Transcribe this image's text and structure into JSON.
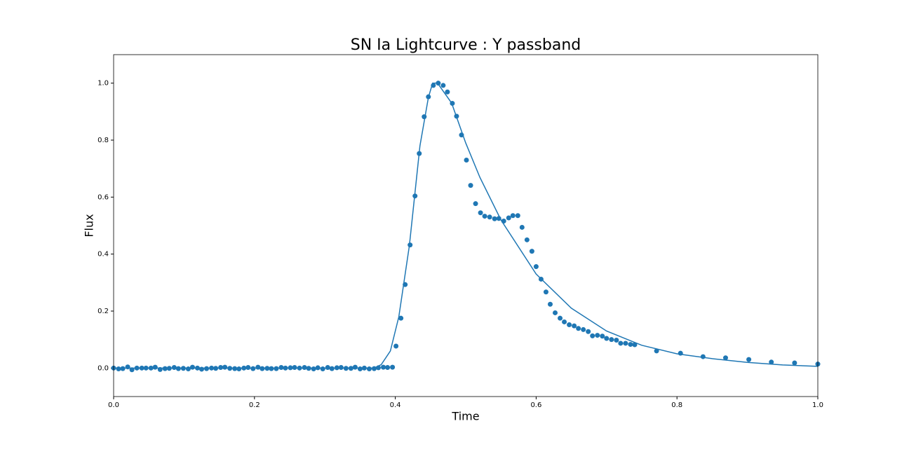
{
  "chart_data": {
    "type": "scatter",
    "title": "SN Ia Lightcurve : Y passband",
    "x_label": "Time",
    "y_label": "Flux",
    "xlim": [
      0,
      1
    ],
    "ylim": [
      -0.1,
      1.1
    ],
    "xticks": [
      {
        "value": 0,
        "label": "0.0"
      },
      0.2,
      0.4,
      0.6,
      0.8,
      {
        "value": 1,
        "label": "1.0"
      }
    ],
    "yticks": [
      {
        "value": 0,
        "label": "0.0"
      },
      0.2,
      0.4,
      0.6,
      0.8,
      {
        "value": 1,
        "label": "1.0"
      }
    ],
    "grid": false,
    "series": [
      {
        "type": "scatter",
        "color": "#1f77b4",
        "x": [
          0,
          0.007,
          0.013,
          0.02,
          0.026,
          0.033,
          0.04,
          0.046,
          0.053,
          0.059,
          0.066,
          0.073,
          0.079,
          0.086,
          0.092,
          0.099,
          0.106,
          0.112,
          0.119,
          0.125,
          0.132,
          0.139,
          0.145,
          0.152,
          0.158,
          0.165,
          0.172,
          0.178,
          0.185,
          0.191,
          0.198,
          0.205,
          0.211,
          0.218,
          0.224,
          0.231,
          0.238,
          0.244,
          0.251,
          0.257,
          0.264,
          0.271,
          0.277,
          0.284,
          0.29,
          0.297,
          0.304,
          0.31,
          0.317,
          0.323,
          0.33,
          0.337,
          0.343,
          0.35,
          0.356,
          0.363,
          0.37,
          0.376,
          0.383,
          0.389,
          0.396,
          0.401,
          0.408,
          0.414,
          0.421,
          0.428,
          0.434,
          0.441,
          0.447,
          0.454,
          0.461,
          0.468,
          0.474,
          0.481,
          0.487,
          0.494,
          0.501,
          0.507,
          0.514,
          0.521,
          0.527,
          0.534,
          0.541,
          0.547,
          0.554,
          0.561,
          0.567,
          0.574,
          0.58,
          0.587,
          0.594,
          0.6,
          0.607,
          0.614,
          0.62,
          0.627,
          0.634,
          0.64,
          0.647,
          0.654,
          0.66,
          0.667,
          0.674,
          0.68,
          0.687,
          0.694,
          0.7,
          0.707,
          0.714,
          0.72,
          0.727,
          0.734,
          0.74,
          0.771,
          0.805,
          0.837,
          0.869,
          0.902,
          0.934,
          0.967,
          1.0
        ],
        "values": [
          0,
          -0.003,
          -0.002,
          0.004,
          -0.006,
          0,
          0,
          0,
          0,
          0.003,
          -0.005,
          -0.002,
          -0.001,
          0.002,
          -0.002,
          -0.001,
          -0.003,
          0.003,
          0,
          -0.004,
          -0.002,
          0,
          -0.001,
          0.002,
          0.003,
          -0.001,
          -0.002,
          -0.003,
          0,
          0.002,
          -0.002,
          0.003,
          -0.002,
          -0.001,
          -0.002,
          -0.002,
          0.002,
          0,
          0.001,
          0.002,
          0,
          0.002,
          -0.001,
          -0.003,
          0.001,
          -0.003,
          0.002,
          -0.002,
          0.001,
          0.002,
          -0.001,
          -0.001,
          0.003,
          -0.003,
          0,
          -0.003,
          -0.002,
          0.001,
          0.003,
          0.002,
          0.003,
          0.077,
          0.175,
          0.293,
          0.432,
          0.604,
          0.753,
          0.882,
          0.952,
          0.992,
          1.0,
          0.992,
          0.969,
          0.929,
          0.884,
          0.818,
          0.73,
          0.641,
          0.577,
          0.545,
          0.533,
          0.53,
          0.524,
          0.525,
          0.516,
          0.527,
          0.535,
          0.535,
          0.494,
          0.45,
          0.41,
          0.356,
          0.312,
          0.267,
          0.224,
          0.194,
          0.175,
          0.162,
          0.152,
          0.148,
          0.139,
          0.135,
          0.128,
          0.113,
          0.115,
          0.112,
          0.104,
          0.1,
          0.098,
          0.087,
          0.087,
          0.083,
          0.082,
          0.06,
          0.052,
          0.04,
          0.036,
          0.03,
          0.021,
          0.018,
          0.014
        ]
      },
      {
        "type": "line",
        "color": "#1f77b4",
        "x": [
          0,
          0.37,
          0.38,
          0.393,
          0.405,
          0.42,
          0.435,
          0.447,
          0.453,
          0.46,
          0.48,
          0.5,
          0.52,
          0.55,
          0.6,
          0.65,
          0.7,
          0.75,
          0.8,
          0.85,
          0.9,
          0.95,
          1.0
        ],
        "values": [
          0,
          0,
          0.012,
          0.06,
          0.18,
          0.43,
          0.78,
          0.95,
          1.0,
          1.0,
          0.93,
          0.79,
          0.67,
          0.52,
          0.33,
          0.21,
          0.13,
          0.08,
          0.05,
          0.033,
          0.02,
          0.011,
          0.006
        ]
      }
    ]
  }
}
